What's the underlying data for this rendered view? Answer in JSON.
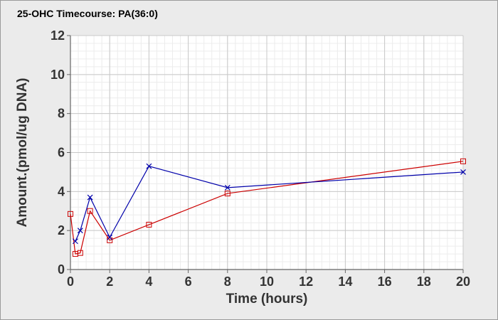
{
  "chart_data": {
    "type": "line",
    "title": "25-OHC Timecourse: PA(36:0)",
    "xlabel": "Time (hours)",
    "ylabel": "Amount.(pmol/ug DNA)",
    "xlim": [
      0,
      20
    ],
    "ylim": [
      0,
      12
    ],
    "x_ticks": [
      0,
      2,
      4,
      6,
      8,
      10,
      12,
      14,
      16,
      18,
      20
    ],
    "y_ticks": [
      0,
      2,
      4,
      6,
      8,
      10,
      12
    ],
    "grid": true,
    "minor_grid": true,
    "legend": "none",
    "series": [
      {
        "color": "#cc0000",
        "marker": "square",
        "x": [
          0,
          0.25,
          0.5,
          1,
          2,
          4,
          8,
          20
        ],
        "y": [
          2.85,
          0.8,
          0.85,
          3.0,
          1.5,
          2.3,
          3.9,
          5.55
        ]
      },
      {
        "color": "#0000aa",
        "marker": "x",
        "x": [
          0.25,
          0.5,
          1,
          2,
          4,
          8,
          20
        ],
        "y": [
          1.45,
          2.0,
          3.7,
          1.65,
          5.3,
          4.2,
          5.0
        ]
      }
    ]
  }
}
